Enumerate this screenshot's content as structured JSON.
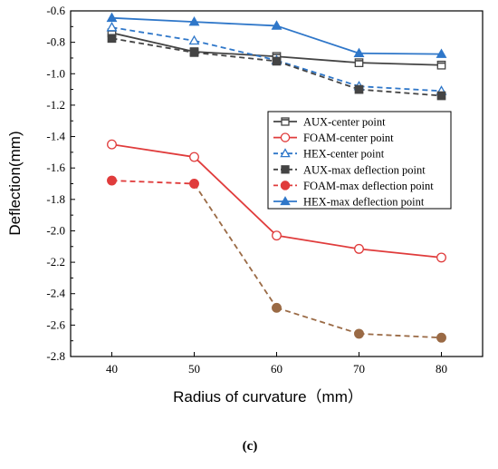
{
  "chart_data": {
    "type": "line",
    "title": "",
    "caption": "(c)",
    "xlabel": "Radius of curvature（mm）",
    "ylabel": "Deflection(mm)",
    "x": [
      40,
      50,
      60,
      70,
      80
    ],
    "xlim": [
      35,
      85
    ],
    "ylim": [
      -2.8,
      -0.6
    ],
    "xticks": [
      40,
      50,
      60,
      70,
      80
    ],
    "yticks": [
      -0.6,
      -0.8,
      -1.0,
      -1.2,
      -1.4,
      -1.6,
      -1.8,
      -2.0,
      -2.2,
      -2.4,
      -2.6,
      -2.8
    ],
    "ytick_labels": [
      "-0.6",
      "-0.8",
      "-1.0",
      "-1.2",
      "-1.4",
      "-1.6",
      "-1.8",
      "-2.0",
      "-2.2",
      "-2.4",
      "-2.6",
      "-2.8"
    ],
    "grid": false,
    "legend_position": "center-right",
    "series": [
      {
        "name": "AUX-center point",
        "values": [
          -0.74,
          -0.86,
          -0.89,
          -0.93,
          -0.945
        ],
        "color": "#444444",
        "dash": "solid",
        "marker": "square-open"
      },
      {
        "name": "FOAM-center point",
        "values": [
          -1.45,
          -1.53,
          -2.03,
          -2.115,
          -2.17
        ],
        "color": "#e03c3c",
        "dash": "solid",
        "marker": "circle-open"
      },
      {
        "name": "HEX-center point",
        "values": [
          -0.705,
          -0.79,
          -0.915,
          -1.08,
          -1.11
        ],
        "color": "#2f77c9",
        "dash": "dashed",
        "marker": "triangle-open"
      },
      {
        "name": "AUX-max deflection point",
        "values": [
          -0.775,
          -0.865,
          -0.92,
          -1.1,
          -1.14
        ],
        "color": "#444444",
        "dash": "dashed",
        "marker": "square-filled"
      },
      {
        "name": "FOAM-max deflection point",
        "values": [
          -1.68,
          -1.7,
          -2.49,
          -2.655,
          -2.68
        ],
        "color": "#e03c3c",
        "dash": "dashed",
        "marker": "circle-filled",
        "overlay_color": "#9a6a45",
        "overlay_from_index": 1
      },
      {
        "name": "HEX-max deflection point",
        "values": [
          -0.645,
          -0.67,
          -0.695,
          -0.87,
          -0.875
        ],
        "color": "#2f77c9",
        "dash": "solid",
        "marker": "triangle-filled"
      }
    ]
  }
}
